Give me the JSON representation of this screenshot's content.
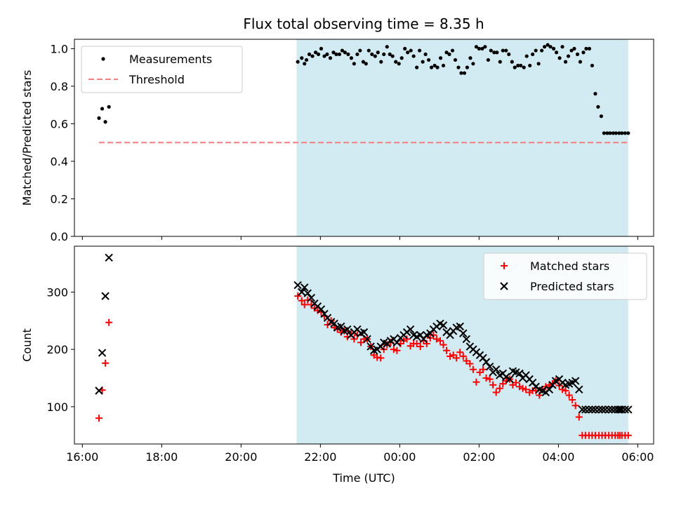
{
  "chart_data": [
    {
      "type": "scatter",
      "title": "Flux total observing time = 8.35 h",
      "xlabel": "",
      "ylabel": "Matched/Predicted stars",
      "ylim": [
        0.0,
        1.05
      ],
      "yticks": [
        "0.0",
        "0.2",
        "0.4",
        "0.6",
        "0.8",
        "1.0"
      ],
      "xlim_hours": [
        15.8,
        30.4
      ],
      "legend_position": "top-left",
      "shaded_region_hours": [
        21.4,
        29.76
      ],
      "shade_color": "#add8e6",
      "series": [
        {
          "name": "Measurements",
          "color": "#000000",
          "marker": "dot",
          "x_hours": [
            16.42,
            16.5,
            16.58,
            16.67,
            21.43,
            21.53,
            21.6,
            21.65,
            21.72,
            21.8,
            21.88,
            21.95,
            22.02,
            22.1,
            22.17,
            22.25,
            22.33,
            22.4,
            22.48,
            22.55,
            22.62,
            22.7,
            22.78,
            22.85,
            22.93,
            23.0,
            23.08,
            23.15,
            23.22,
            23.3,
            23.38,
            23.45,
            23.53,
            23.6,
            23.68,
            23.75,
            23.82,
            23.9,
            23.98,
            24.05,
            24.13,
            24.2,
            24.28,
            24.35,
            24.43,
            24.5,
            24.58,
            24.65,
            24.73,
            24.8,
            24.88,
            24.95,
            25.03,
            25.1,
            25.18,
            25.25,
            25.33,
            25.4,
            25.48,
            25.55,
            25.63,
            25.7,
            25.78,
            25.85,
            25.93,
            26.0,
            26.08,
            26.15,
            26.23,
            26.3,
            26.38,
            26.45,
            26.53,
            26.6,
            26.68,
            26.75,
            26.83,
            26.9,
            26.98,
            27.05,
            27.13,
            27.2,
            27.28,
            27.35,
            27.43,
            27.5,
            27.58,
            27.65,
            27.73,
            27.8,
            27.88,
            27.95,
            28.03,
            28.1,
            28.18,
            28.25,
            28.33,
            28.4,
            28.48,
            28.55,
            28.63,
            28.7,
            28.78,
            28.85,
            28.93,
            29.0,
            29.08,
            29.15,
            29.23,
            29.3,
            29.38,
            29.45,
            29.53,
            29.6,
            29.68,
            29.76
          ],
          "values": [
            0.63,
            0.68,
            0.61,
            0.69,
            0.93,
            0.95,
            0.92,
            0.94,
            0.97,
            0.96,
            0.98,
            0.97,
            1.0,
            0.96,
            0.97,
            0.95,
            0.98,
            0.97,
            0.97,
            0.99,
            0.98,
            0.97,
            0.95,
            0.92,
            0.97,
            0.99,
            0.93,
            0.92,
            0.99,
            0.97,
            0.96,
            0.98,
            0.93,
            0.97,
            1.01,
            0.97,
            0.96,
            0.93,
            0.92,
            0.95,
            1.0,
            0.98,
            0.99,
            0.96,
            0.9,
            0.99,
            0.93,
            0.97,
            0.94,
            0.9,
            0.91,
            0.9,
            0.95,
            0.91,
            0.98,
            0.97,
            0.99,
            0.94,
            0.9,
            0.87,
            0.87,
            0.9,
            0.95,
            0.92,
            1.01,
            1.0,
            1.0,
            1.01,
            0.94,
            0.99,
            0.98,
            0.98,
            0.93,
            0.99,
            0.99,
            0.97,
            0.93,
            0.9,
            0.91,
            0.91,
            0.9,
            0.96,
            0.91,
            0.97,
            0.99,
            0.92,
            0.99,
            1.01,
            1.02,
            1.01,
            1.0,
            0.98,
            0.95,
            1.01,
            0.93,
            0.96,
            0.99,
            1.0,
            0.97,
            0.93,
            0.98,
            1.0,
            1.0,
            0.91,
            0.76,
            0.69,
            0.64,
            0.55,
            0.55,
            0.55,
            0.55,
            0.55,
            0.55,
            0.55,
            0.55,
            0.55
          ]
        },
        {
          "name": "Threshold",
          "color": "#f08080",
          "line_style": "dashed",
          "x_hours": [
            16.42,
            29.76
          ],
          "values": [
            0.5,
            0.5
          ]
        }
      ]
    },
    {
      "type": "scatter",
      "title": "",
      "xlabel": "Time (UTC)",
      "ylabel": "Count",
      "ylim": [
        35,
        380
      ],
      "yticks": [
        "100",
        "200",
        "300"
      ],
      "xlim_hours": [
        15.8,
        30.4
      ],
      "xticks": [
        "16:00",
        "18:00",
        "20:00",
        "22:00",
        "00:00",
        "02:00",
        "04:00",
        "06:00"
      ],
      "legend_position": "top-right",
      "shaded_region_hours": [
        21.4,
        29.76
      ],
      "shade_color": "#add8e6",
      "series": [
        {
          "name": "Matched stars",
          "color": "#ff0000",
          "marker": "plus",
          "x_hours": [
            16.42,
            16.5,
            16.58,
            16.67,
            21.43,
            21.53,
            21.6,
            21.68,
            21.77,
            21.85,
            21.93,
            22.02,
            22.1,
            22.18,
            22.27,
            22.35,
            22.43,
            22.52,
            22.6,
            22.68,
            22.77,
            22.85,
            22.93,
            23.02,
            23.1,
            23.18,
            23.27,
            23.35,
            23.43,
            23.52,
            23.6,
            23.68,
            23.77,
            23.85,
            23.93,
            24.02,
            24.1,
            24.18,
            24.27,
            24.35,
            24.43,
            24.52,
            24.6,
            24.68,
            24.77,
            24.85,
            24.93,
            25.02,
            25.1,
            25.18,
            25.27,
            25.35,
            25.43,
            25.52,
            25.6,
            25.68,
            25.77,
            25.85,
            25.93,
            26.02,
            26.1,
            26.18,
            26.27,
            26.35,
            26.43,
            26.52,
            26.6,
            26.68,
            26.77,
            26.85,
            26.93,
            27.02,
            27.1,
            27.18,
            27.27,
            27.35,
            27.43,
            27.52,
            27.6,
            27.68,
            27.77,
            27.85,
            27.93,
            28.02,
            28.1,
            28.18,
            28.27,
            28.35,
            28.43,
            28.52,
            28.6,
            28.68,
            28.77,
            28.85,
            28.93,
            29.02,
            29.1,
            29.18,
            29.27,
            29.35,
            29.43,
            29.5,
            29.55,
            29.6,
            29.68,
            29.76
          ],
          "values": [
            80,
            129,
            176,
            247,
            293,
            285,
            278,
            286,
            278,
            272,
            268,
            265,
            258,
            243,
            250,
            238,
            235,
            230,
            232,
            222,
            228,
            218,
            225,
            212,
            218,
            218,
            205,
            190,
            186,
            185,
            200,
            208,
            212,
            200,
            198,
            210,
            215,
            218,
            206,
            210,
            210,
            205,
            215,
            210,
            220,
            225,
            218,
            215,
            208,
            198,
            188,
            190,
            185,
            195,
            188,
            180,
            175,
            165,
            143,
            160,
            165,
            150,
            148,
            138,
            125,
            132,
            140,
            145,
            148,
            138,
            142,
            135,
            132,
            130,
            125,
            128,
            128,
            120,
            130,
            135,
            138,
            140,
            145,
            137,
            130,
            128,
            120,
            112,
            102,
            82,
            50,
            50,
            50,
            50,
            50,
            50,
            50,
            50,
            50,
            50,
            50,
            50,
            50,
            50,
            50,
            50
          ]
        },
        {
          "name": "Predicted stars",
          "color": "#000000",
          "marker": "x",
          "x_hours": [
            16.42,
            16.5,
            16.58,
            16.67,
            21.43,
            21.53,
            21.6,
            21.68,
            21.77,
            21.85,
            21.93,
            22.02,
            22.1,
            22.18,
            22.27,
            22.35,
            22.43,
            22.52,
            22.6,
            22.68,
            22.77,
            22.85,
            22.93,
            23.02,
            23.1,
            23.18,
            23.27,
            23.35,
            23.43,
            23.52,
            23.6,
            23.68,
            23.77,
            23.85,
            23.93,
            24.02,
            24.1,
            24.18,
            24.27,
            24.35,
            24.43,
            24.52,
            24.6,
            24.68,
            24.77,
            24.85,
            24.93,
            25.02,
            25.1,
            25.18,
            25.27,
            25.35,
            25.43,
            25.52,
            25.6,
            25.68,
            25.77,
            25.85,
            25.93,
            26.02,
            26.1,
            26.18,
            26.27,
            26.35,
            26.43,
            26.52,
            26.6,
            26.68,
            26.77,
            26.85,
            26.93,
            27.02,
            27.1,
            27.18,
            27.27,
            27.35,
            27.43,
            27.52,
            27.6,
            27.68,
            27.77,
            27.85,
            27.93,
            28.02,
            28.1,
            28.18,
            28.27,
            28.35,
            28.43,
            28.52,
            28.6,
            28.68,
            28.77,
            28.85,
            28.93,
            29.02,
            29.1,
            29.18,
            29.27,
            29.35,
            29.43,
            29.5,
            29.55,
            29.6,
            29.68,
            29.76
          ],
          "values": [
            128,
            194,
            293,
            360,
            312,
            300,
            308,
            298,
            290,
            280,
            275,
            270,
            262,
            255,
            248,
            245,
            238,
            240,
            232,
            235,
            225,
            230,
            235,
            228,
            230,
            218,
            205,
            198,
            200,
            205,
            212,
            210,
            215,
            218,
            212,
            220,
            225,
            230,
            235,
            225,
            222,
            225,
            218,
            225,
            228,
            235,
            240,
            245,
            242,
            230,
            225,
            232,
            238,
            240,
            228,
            218,
            205,
            200,
            195,
            190,
            185,
            178,
            170,
            160,
            165,
            155,
            158,
            152,
            148,
            162,
            160,
            158,
            150,
            155,
            148,
            142,
            135,
            130,
            128,
            125,
            130,
            138,
            145,
            148,
            142,
            138,
            140,
            142,
            145,
            130,
            95,
            95,
            95,
            95,
            95,
            95,
            95,
            95,
            95,
            95,
            95,
            95,
            95,
            95,
            95,
            95
          ]
        }
      ]
    }
  ]
}
